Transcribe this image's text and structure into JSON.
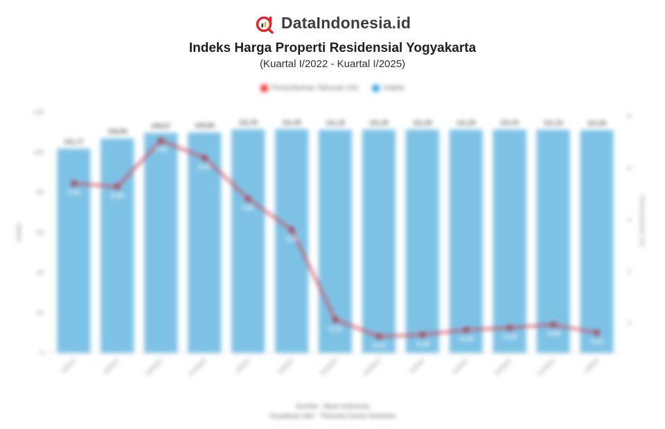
{
  "header": {
    "brand": "DataIndonesia.id",
    "title": "Indeks Harga Properti Residensial Yogyakarta",
    "subtitle": "(Kuartal I/2022 - Kuartal I/2025)"
  },
  "legend": [
    {
      "label": "Pertumbuhan Tahunan (%)",
      "color": "#ee2b2b"
    },
    {
      "label": "Indeks",
      "color": "#35a3dd"
    }
  ],
  "chart_data": {
    "type": "bar",
    "subtype": "bar+line combo",
    "categories": [
      "I/2022",
      "II/2022",
      "III/2022",
      "IV/2022",
      "I/2023",
      "II/2023",
      "III/2023",
      "IV/2023",
      "I/2024",
      "II/2024",
      "III/2024",
      "IV/2024",
      "I/2025"
    ],
    "series": [
      {
        "name": "Indeks",
        "type": "bar",
        "axis": "left",
        "color": "#7dc2e5",
        "values": [
          101.77,
          106.85,
          109.67,
          109.85,
          111.43,
          111.45,
          111.18,
          111.25,
          111.29,
          111.25,
          111.31,
          111.19,
          111.05
        ]
      },
      {
        "name": "Pertumbuhan Tahunan (%)",
        "type": "line",
        "axis": "right",
        "color": "#d4495a",
        "marker_color": "#b5303f",
        "values": [
          5.4,
          5.28,
          7.06,
          6.39,
          4.81,
          3.61,
          0.14,
          -0.51,
          -0.45,
          -0.26,
          -0.18,
          -0.06,
          -0.37
        ]
      }
    ],
    "left_axis": {
      "title": "Indeks",
      "ticks": [
        0,
        20,
        40,
        60,
        80,
        100,
        120
      ],
      "range": [
        0,
        120
      ]
    },
    "right_axis": {
      "title": "Pertumbuhan (%)",
      "ticks": [
        0,
        2,
        4,
        6,
        8
      ],
      "range": [
        -1.15,
        8.16
      ]
    },
    "title": "Indeks Harga Properti Residensial Yogyakarta",
    "grid": "off",
    "legend_position": "top",
    "decimal_separator": "comma"
  },
  "footer": {
    "source": "Sumber : Bank Indonesia",
    "credit": "Visualisasi oleh : Theresia Gracia Simbolon"
  }
}
